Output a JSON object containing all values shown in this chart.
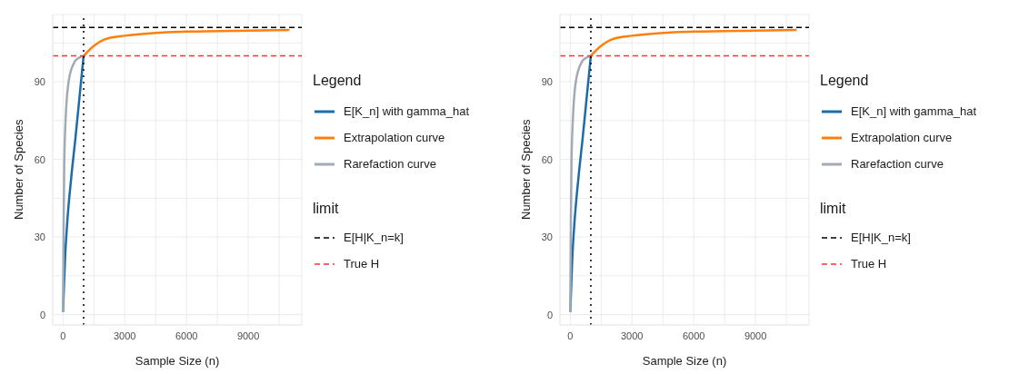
{
  "chart_data": [
    {
      "type": "line",
      "xlabel": "Sample Size (n)",
      "ylabel": "Number of Species",
      "legend_title": "Legend",
      "legend": "right",
      "grid": true,
      "line_style": "solid",
      "marker": "none",
      "annotations": [
        "limit"
      ],
      "xlim": [
        -500,
        11600
      ],
      "xticks": [
        0,
        {
          "value": 1500,
          "label": null
        },
        3000,
        {
          "value": 4500,
          "label": null
        },
        6000,
        {
          "value": 7500,
          "label": null
        },
        9000,
        {
          "value": 10500,
          "label": null
        }
      ],
      "ylim": [
        -4,
        116
      ],
      "yticks": [
        0,
        {
          "value": 15,
          "label": null
        },
        30,
        {
          "value": 45,
          "label": null
        },
        60,
        {
          "value": 75,
          "label": null
        },
        90,
        {
          "value": 105,
          "label": null
        }
      ],
      "series": [
        {
          "name": "E[K_n] with gamma_hat",
          "color": "#1b6ca8",
          "x": [
            0,
            100,
            200,
            400,
            600,
            800,
            1000
          ],
          "values": [
            1,
            22,
            35,
            53,
            68,
            84,
            100
          ]
        },
        {
          "name": "Extrapolation curve",
          "color": "#ff7f0e",
          "x": [
            1000,
            1500,
            2000,
            3000,
            4500,
            6000,
            9000,
            11000
          ],
          "values": [
            100,
            103.9,
            106.3,
            107.8,
            108.9,
            109.4,
            109.8,
            110
          ]
        },
        {
          "name": "Rarefaction curve",
          "color": "#a3aab5",
          "x": [
            0,
            30,
            60,
            130,
            280,
            570,
            800,
            1000
          ],
          "values": [
            1,
            35,
            58,
            76,
            90.5,
            97.8,
            99.4,
            100
          ]
        }
      ],
      "ref_lines": [
        {
          "axis": "y",
          "value": 111,
          "label": "E[H|K_n=k]",
          "color": "#000000",
          "line_style": "dashed"
        },
        {
          "axis": "y",
          "value": 100,
          "label": "True H",
          "color": "#ff3333",
          "line_style": "dashed"
        },
        {
          "axis": "x",
          "value": 1000,
          "color": "#000000",
          "line_style": "dotted"
        }
      ]
    },
    {
      "type": "line",
      "xlabel": "Sample Size (n)",
      "ylabel": "Number of Species",
      "legend_title": "Legend",
      "legend": "right",
      "grid": true,
      "line_style": "solid",
      "marker": "none",
      "annotations": [
        "limit"
      ],
      "xlim": [
        -500,
        11600
      ],
      "xticks": [
        0,
        {
          "value": 1500,
          "label": null
        },
        3000,
        {
          "value": 4500,
          "label": null
        },
        6000,
        {
          "value": 7500,
          "label": null
        },
        9000,
        {
          "value": 10500,
          "label": null
        }
      ],
      "ylim": [
        -4,
        116
      ],
      "yticks": [
        0,
        {
          "value": 15,
          "label": null
        },
        30,
        {
          "value": 45,
          "label": null
        },
        60,
        {
          "value": 75,
          "label": null
        },
        90,
        {
          "value": 105,
          "label": null
        }
      ],
      "series": [
        {
          "name": "E[K_n] with gamma_hat",
          "color": "#1b6ca8",
          "x": [
            0,
            100,
            200,
            400,
            600,
            800,
            1000
          ],
          "values": [
            1,
            22,
            35,
            53,
            68,
            84,
            100
          ]
        },
        {
          "name": "Extrapolation curve",
          "color": "#ff7f0e",
          "x": [
            1000,
            1500,
            2000,
            3000,
            4500,
            6000,
            9000,
            11000
          ],
          "values": [
            100,
            103.9,
            106.3,
            107.8,
            108.9,
            109.4,
            109.8,
            110
          ]
        },
        {
          "name": "Rarefaction curve",
          "color": "#a3aab5",
          "x": [
            0,
            30,
            60,
            130,
            280,
            570,
            800,
            1000
          ],
          "values": [
            1,
            35,
            58,
            76,
            90.5,
            97.8,
            99.4,
            100
          ]
        }
      ],
      "ref_lines": [
        {
          "axis": "y",
          "value": 111,
          "label": "E[H|K_n=k]",
          "color": "#000000",
          "line_style": "dashed"
        },
        {
          "axis": "y",
          "value": 100,
          "label": "True H",
          "color": "#ff3333",
          "line_style": "dashed"
        },
        {
          "axis": "x",
          "value": 1000,
          "color": "#000000",
          "line_style": "dotted"
        }
      ]
    }
  ]
}
